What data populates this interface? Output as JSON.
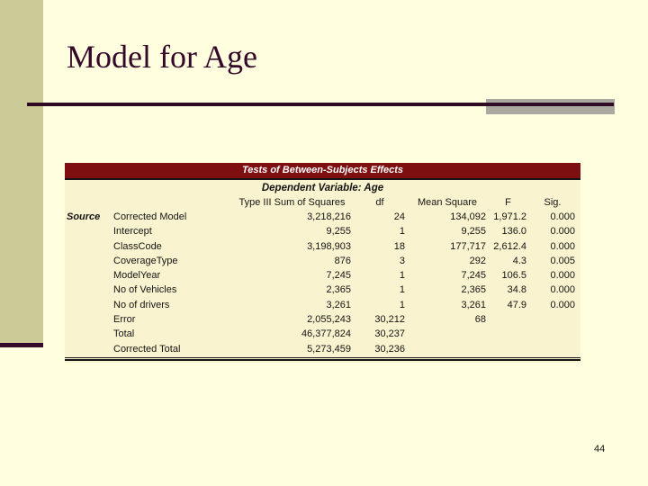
{
  "slide": {
    "title": "Model for Age",
    "page_number": "44"
  },
  "colors": {
    "slide_background": "#ffffdf",
    "sidebar_olive": "#cbcb98",
    "accent_dark_purple": "#35082a",
    "accent_gray": "#a9a9a1",
    "table_banner_maroon": "#7e0f10",
    "table_background": "#faf3cf"
  },
  "table": {
    "header": "Tests of Between-Subjects Effects",
    "subheader": "Dependent Variable: Age",
    "source_label": "Source",
    "columns": {
      "ss": "Type III Sum of Squares",
      "df": "df",
      "ms": "Mean Square",
      "f": "F",
      "sig": "Sig."
    },
    "rows": [
      {
        "label": "Corrected Model",
        "ss": "3,218,216",
        "df": "24",
        "ms": "134,092",
        "f": "1,971.2",
        "sig": "0.000"
      },
      {
        "label": "Intercept",
        "ss": "9,255",
        "df": "1",
        "ms": "9,255",
        "f": "136.0",
        "sig": "0.000"
      },
      {
        "label": "ClassCode",
        "ss": "3,198,903",
        "df": "18",
        "ms": "177,717",
        "f": "2,612.4",
        "sig": "0.000"
      },
      {
        "label": "CoverageType",
        "ss": "876",
        "df": "3",
        "ms": "292",
        "f": "4.3",
        "sig": "0.005"
      },
      {
        "label": "ModelYear",
        "ss": "7,245",
        "df": "1",
        "ms": "7,245",
        "f": "106.5",
        "sig": "0.000"
      },
      {
        "label": "No of Vehicles",
        "ss": "2,365",
        "df": "1",
        "ms": "2,365",
        "f": "34.8",
        "sig": "0.000"
      },
      {
        "label": "No of drivers",
        "ss": "3,261",
        "df": "1",
        "ms": "3,261",
        "f": "47.9",
        "sig": "0.000"
      },
      {
        "label": "Error",
        "ss": "2,055,243",
        "df": "30,212",
        "ms": "68",
        "f": "",
        "sig": ""
      },
      {
        "label": "Total",
        "ss": "46,377,824",
        "df": "30,237",
        "ms": "",
        "f": "",
        "sig": ""
      },
      {
        "label": "Corrected Total",
        "ss": "5,273,459",
        "df": "30,236",
        "ms": "",
        "f": "",
        "sig": ""
      }
    ]
  }
}
